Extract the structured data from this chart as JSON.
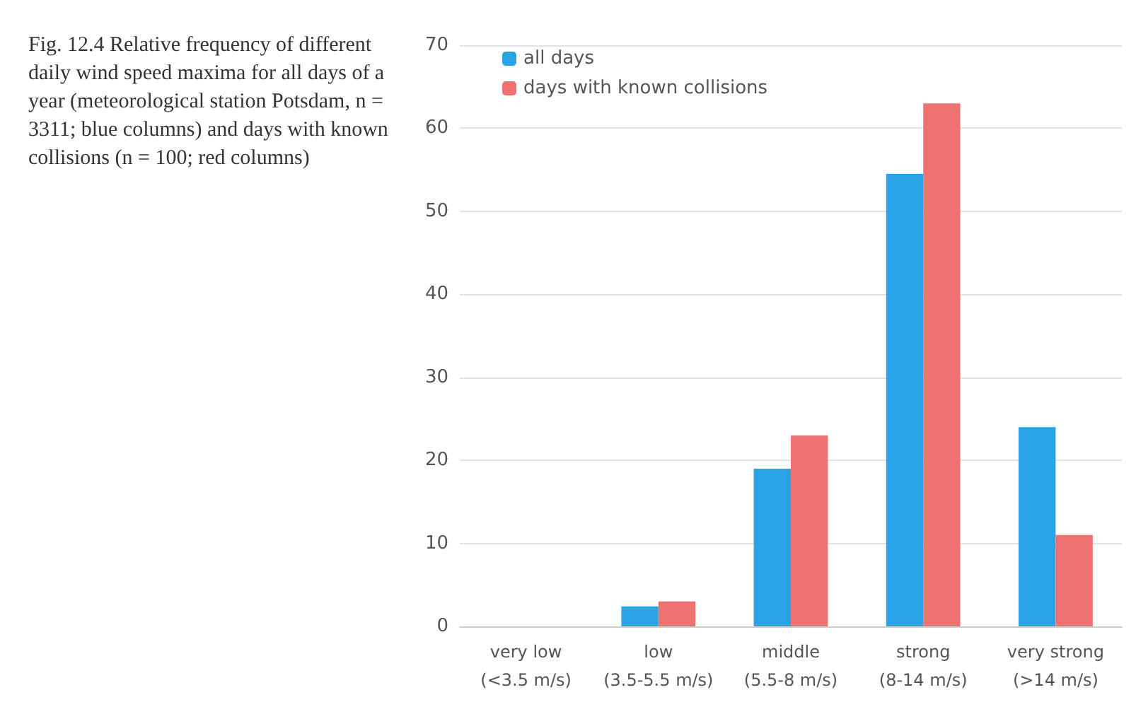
{
  "chart_data": {
    "type": "bar",
    "title": "Fig. 12.4 Relative frequency of different daily wind speed maxima for all days of a year (meteorological station Potsdam, n = 3311; blue columns) and days with known collisions (n = 100; red columns)",
    "categories": [
      "very low (<3.5 m/s)",
      "low (3.5-5.5 m/s)",
      "middle (5.5-8 m/s)",
      "strong (8-14 m/s)",
      "very strong (>14 m/s)"
    ],
    "series": [
      {
        "name": "all days",
        "color": "#2aa3e6",
        "values": [
          0,
          2.4,
          19,
          54.5,
          24
        ]
      },
      {
        "name": "days with known collisions",
        "color": "#ee7272",
        "values": [
          0,
          3,
          23,
          63,
          11
        ]
      }
    ],
    "ylim": [
      0,
      70
    ],
    "yticks": [
      0,
      10,
      20,
      30,
      40,
      50,
      60,
      70
    ],
    "grid": "y",
    "legend": "top left"
  }
}
